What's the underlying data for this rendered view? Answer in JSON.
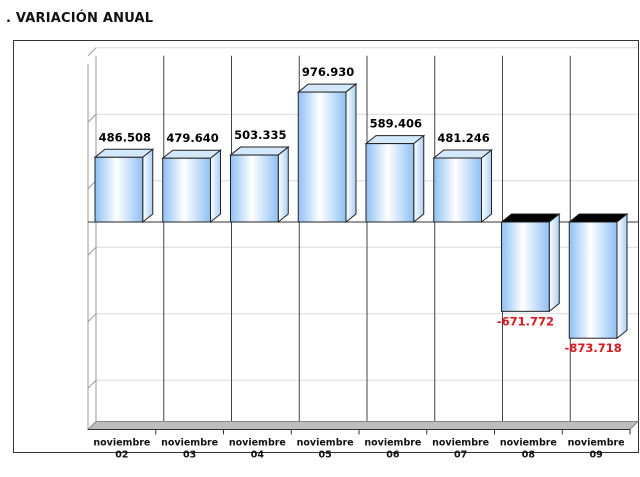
{
  "chart_data": {
    "type": "bar",
    "title": ". VARIACIÓN ANUAL",
    "categories": [
      [
        "noviembre",
        "02"
      ],
      [
        "noviembre",
        "03"
      ],
      [
        "noviembre",
        "04"
      ],
      [
        "noviembre",
        "05"
      ],
      [
        "noviembre",
        "06"
      ],
      [
        "noviembre",
        "07"
      ],
      [
        "noviembre",
        "08"
      ],
      [
        "noviembre",
        "09"
      ]
    ],
    "values": [
      486508,
      479640,
      503335,
      976930,
      589406,
      481246,
      -671772,
      -873718
    ],
    "data_labels": [
      "486.508",
      "479.640",
      "503.335",
      "976.930",
      "589.406",
      "481.246",
      "-671.772",
      "-873.718"
    ],
    "ylim": [
      -1500000,
      1250000
    ],
    "grid": true,
    "xlabel": "",
    "ylabel": "",
    "colors": {
      "positive_label": "#000000",
      "negative_label": "#e8141c",
      "bar_light": "#ffffff",
      "bar_dark": "#8ec0f4"
    }
  }
}
